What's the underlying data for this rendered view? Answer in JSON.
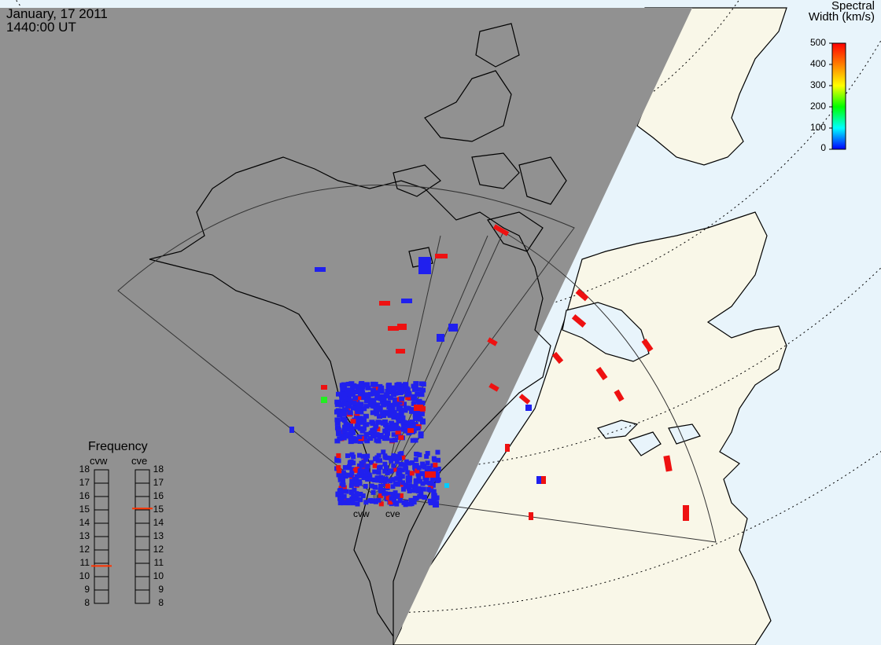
{
  "title": {
    "date": "January, 17 2011",
    "time": "1440:00 UT"
  },
  "colorbar": {
    "title_line1": "Spectral",
    "title_line2": "Width (km/s)",
    "ticks": [
      "500",
      "400",
      "300",
      "200",
      "100",
      "0"
    ],
    "gradient_colors": [
      "#ff0000",
      "#ff7f00",
      "#ffff00",
      "#00ff00",
      "#00ffff",
      "#0000ff"
    ]
  },
  "frequency_panel": {
    "title": "Frequency",
    "columns": [
      {
        "label": "cvw",
        "marker_value": 10.8
      },
      {
        "label": "cve",
        "marker_value": 15.1
      }
    ],
    "ticks": [
      "18",
      "17",
      "16",
      "15",
      "14",
      "13",
      "12",
      "11",
      "10",
      "9",
      "8"
    ],
    "marker_color": "#ff3300"
  },
  "radars": [
    {
      "label": "cvw"
    },
    {
      "label": "cve"
    }
  ],
  "colors": {
    "night_shade": "#919191",
    "day_land": "#f9f7e8",
    "ocean": "#e8f4fb",
    "echo_low": "#2020ee",
    "echo_high": "#ee1111"
  }
}
